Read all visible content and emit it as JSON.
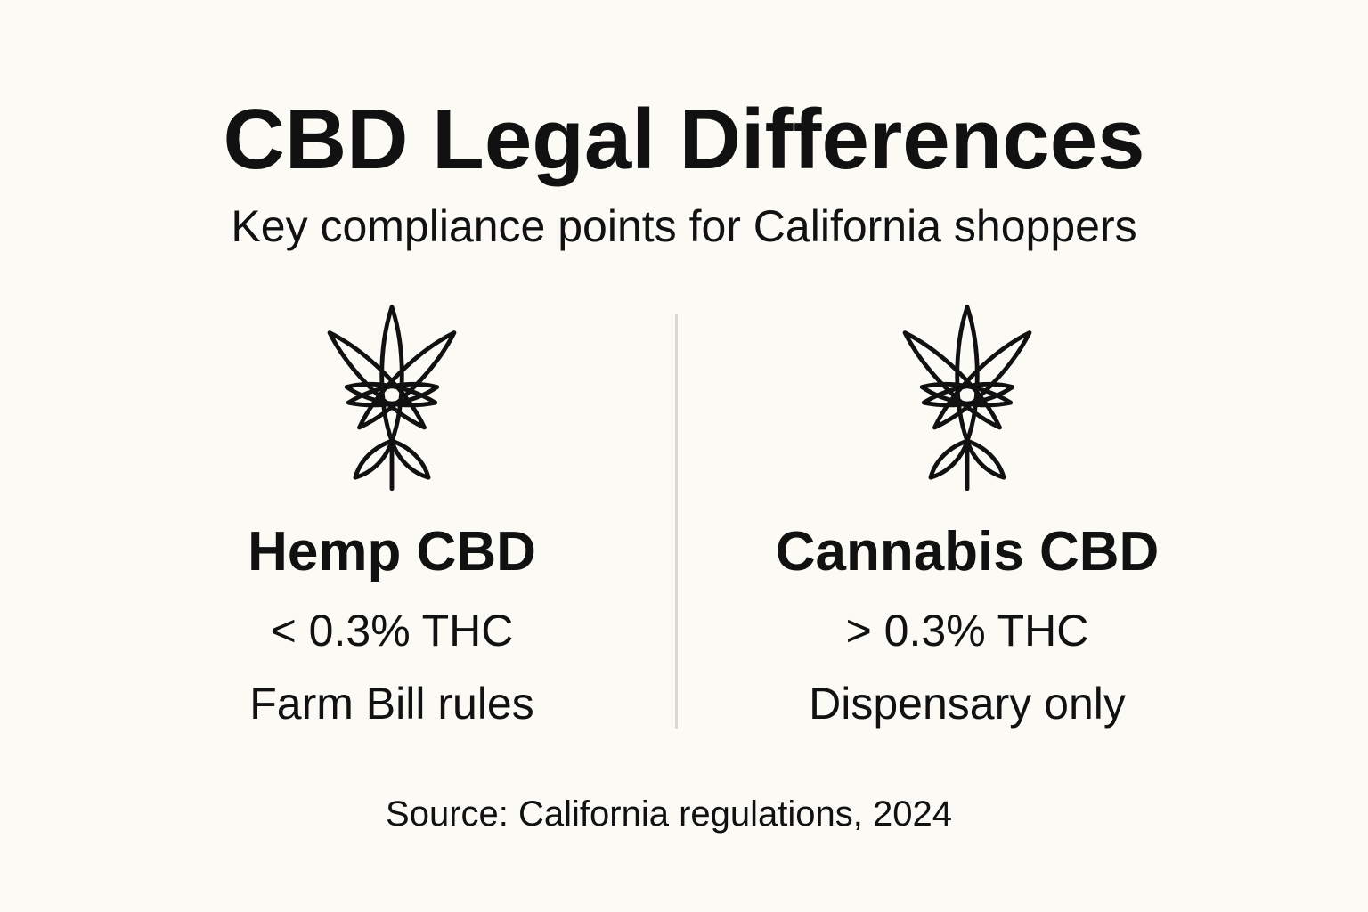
{
  "header": {
    "title": "CBD Legal Differences",
    "subtitle": "Key compliance points for California shoppers"
  },
  "columns": [
    {
      "icon": "cannabis-leaf-icon",
      "heading": "Hemp CBD",
      "thc_limit": "< 0.3% THC",
      "rule": "Farm Bill rules"
    },
    {
      "icon": "cannabis-leaf-icon",
      "heading": "Cannabis CBD",
      "thc_limit": "> 0.3% THC",
      "rule": "Dispensary only"
    }
  ],
  "footer": {
    "source": "Source: California regulations, 2024"
  },
  "colors": {
    "background": "#fbfaf5",
    "text": "#111111",
    "divider": "#d9d8d1"
  }
}
